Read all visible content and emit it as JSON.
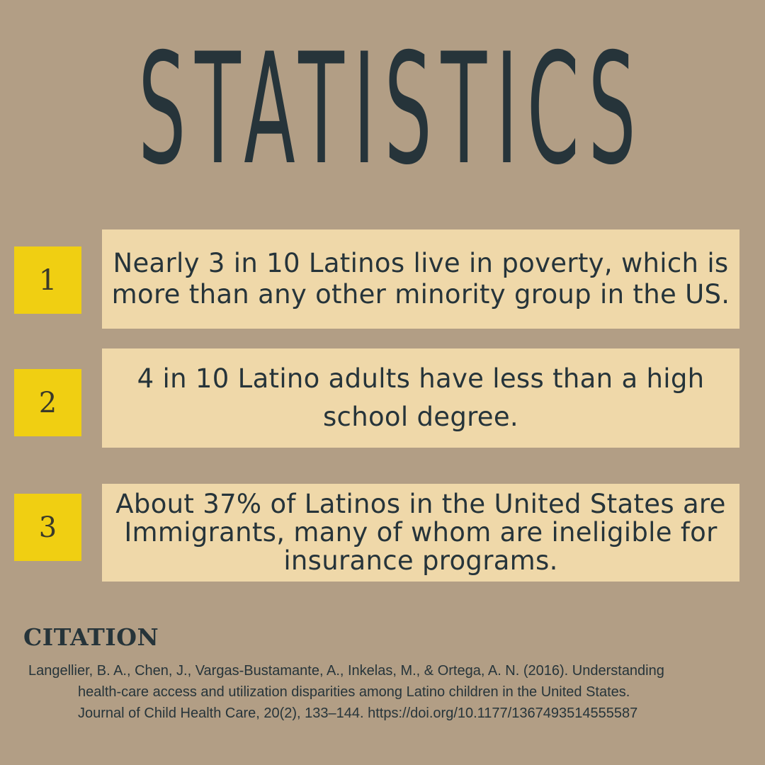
{
  "title": "STATISTICS",
  "stats": [
    {
      "number": "1",
      "text": "Nearly 3 in 10 Latinos live in poverty, which is more than any other minority group in the US."
    },
    {
      "number": "2",
      "text": "4 in 10 Latino adults have less than a high school degree."
    },
    {
      "number": "3",
      "text": "About 37% of Latinos in the United States are Immigrants, many of whom are ineligible for insurance programs."
    }
  ],
  "citation": {
    "heading": "CITATION",
    "text": "Langellier, B. A., Chen, J., Vargas-Bustamante, A., Inkelas, M., & Ortega, A. N. (2016). Understanding health-care access and utilization disparities among Latino children in the United States. Journal of Child Health Care, 20(2), 133–144. https://doi.org/10.1177/1367493514555587"
  },
  "colors": {
    "background": "#b29e85",
    "title": "#26343a",
    "number_box": "#f0cf12",
    "stat_box": "#efd8a9"
  }
}
